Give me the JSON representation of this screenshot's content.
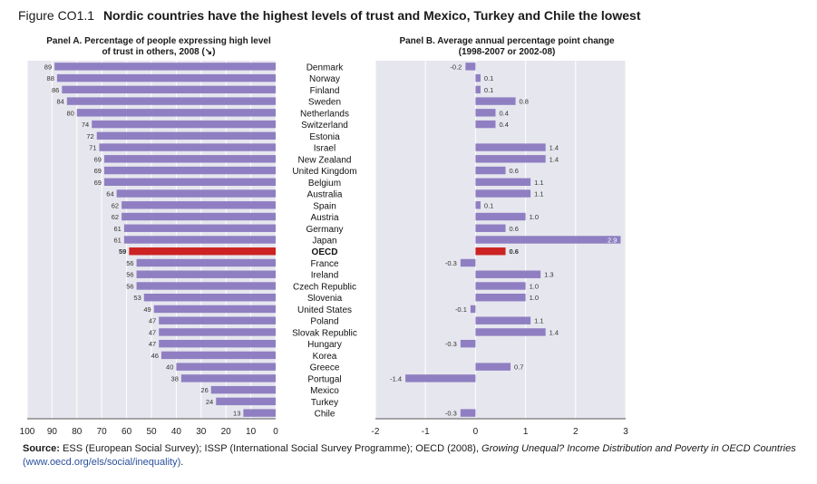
{
  "figure": {
    "label": "Figure CO1.1",
    "title": "Nordic countries have the highest levels of trust and Mexico, Turkey and Chile the lowest"
  },
  "source": {
    "label": "Source:",
    "text": " ESS (European Social Survey); ISSP (International Social Survey Programme); OECD (2008), ",
    "italic": "Growing Unequal? Income Distribution and Poverty in OECD Countries",
    "link": "(www.oecd.org/els/social/inequality)",
    "end": "."
  },
  "colors": {
    "bar": "#8f7fc2",
    "highlight": "#cc2222",
    "panel_bg": "#e6e6ee",
    "grid": "#ffffff"
  },
  "chart_data": [
    {
      "type": "bar",
      "orientation": "horizontal",
      "direction": "right-to-left",
      "title_lines": [
        "Panel A. Percentage of people expressing high level",
        "of trust in others, 2008 (↘)"
      ],
      "xlim": [
        0,
        100
      ],
      "xticks": [
        "100",
        "90",
        "80",
        "70",
        "60",
        "50",
        "40",
        "30",
        "20",
        "10",
        "0"
      ],
      "xtick_values": [
        100,
        90,
        80,
        70,
        60,
        50,
        40,
        30,
        20,
        10,
        0
      ],
      "categories": [
        "Denmark",
        "Norway",
        "Finland",
        "Sweden",
        "Netherlands",
        "Switzerland",
        "Estonia",
        "Israel",
        "New Zealand",
        "United Kingdom",
        "Belgium",
        "Australia",
        "Spain",
        "Austria",
        "Germany",
        "Japan",
        "OECD",
        "France",
        "Ireland",
        "Czech Republic",
        "Slovenia",
        "United States",
        "Poland",
        "Slovak Republic",
        "Hungary",
        "Korea",
        "Greece",
        "Portugal",
        "Mexico",
        "Turkey",
        "Chile"
      ],
      "values": [
        89,
        88,
        86,
        84,
        80,
        74,
        72,
        71,
        69,
        69,
        69,
        64,
        62,
        62,
        61,
        61,
        59,
        56,
        56,
        56,
        53,
        49,
        47,
        47,
        47,
        46,
        40,
        38,
        26,
        24,
        13
      ],
      "labels": [
        "89",
        "88",
        "86",
        "84",
        "80",
        "74",
        "72",
        "71",
        "69",
        "69",
        "69",
        "64",
        "62",
        "62",
        "61",
        "61",
        "59",
        "56",
        "56",
        "56",
        "53",
        "49",
        "47",
        "47",
        "47",
        "46",
        "40",
        "38",
        "26",
        "24",
        "13"
      ],
      "highlight": "OECD"
    },
    {
      "type": "bar",
      "orientation": "horizontal",
      "title_lines": [
        "Panel B. Average annual percentage point change",
        "(1998-2007 or 2002-08)"
      ],
      "xlim": [
        -2,
        3
      ],
      "xticks": [
        "-2",
        "-1",
        "0",
        "1",
        "2",
        "3"
      ],
      "xtick_values": [
        -2,
        -1,
        0,
        1,
        2,
        3
      ],
      "categories": [
        "Denmark",
        "Norway",
        "Finland",
        "Sweden",
        "Netherlands",
        "Switzerland",
        "Estonia",
        "Israel",
        "New Zealand",
        "United Kingdom",
        "Belgium",
        "Australia",
        "Spain",
        "Austria",
        "Germany",
        "Japan",
        "OECD",
        "France",
        "Ireland",
        "Czech Republic",
        "Slovenia",
        "United States",
        "Poland",
        "Slovak Republic",
        "Hungary",
        "Korea",
        "Greece",
        "Portugal",
        "Mexico",
        "Turkey",
        "Chile"
      ],
      "values": [
        -0.2,
        0.1,
        0.1,
        0.8,
        0.4,
        0.4,
        null,
        1.4,
        1.4,
        0.6,
        1.1,
        1.1,
        0.1,
        1.0,
        0.6,
        2.9,
        0.6,
        -0.3,
        1.3,
        1.0,
        1.0,
        -0.1,
        1.1,
        1.4,
        -0.3,
        null,
        0.7,
        -1.4,
        null,
        null,
        -0.3
      ],
      "labels": [
        "-0.2",
        "0.1",
        "0.1",
        "0.8",
        "0.4",
        "0.4",
        "",
        "1.4",
        "1.4",
        "0.6",
        "1.1",
        "1.1",
        "0.1",
        "1.0",
        "0.6",
        "2.9",
        "0.6",
        "-0.3",
        "1.3",
        "1.0",
        "1.0",
        "-0.1",
        "1.1",
        "1.4",
        "-0.3",
        "",
        "0.7",
        "-1.4",
        "",
        "",
        "-0.3"
      ],
      "highlight": "OECD"
    }
  ]
}
